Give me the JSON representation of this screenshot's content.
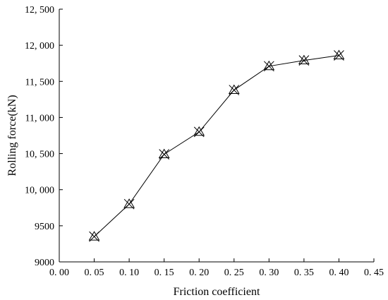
{
  "chart_data": {
    "type": "line",
    "title": "",
    "xlabel": "Friction coefficient",
    "ylabel": "Rolling force(kN)",
    "xlim": [
      0.0,
      0.45
    ],
    "ylim": [
      9000,
      12500
    ],
    "x_ticks": [
      0.0,
      0.05,
      0.1,
      0.15,
      0.2,
      0.25,
      0.3,
      0.35,
      0.4,
      0.45
    ],
    "x_tick_labels": [
      "0. 00",
      "0. 05",
      "0. 10",
      "0. 15",
      "0. 20",
      "0. 25",
      "0. 30",
      "0. 35",
      "0. 40",
      "0. 45"
    ],
    "y_ticks": [
      9000,
      9500,
      10000,
      10500,
      11000,
      11500,
      12000,
      12500
    ],
    "y_tick_labels": [
      "9000",
      "9500",
      "10, 000",
      "10, 500",
      "11, 000",
      "11, 500",
      "12, 000",
      "12, 500"
    ],
    "grid": false,
    "series": [
      {
        "marker": "triangle-x",
        "color": "#000000",
        "x": [
          0.05,
          0.1,
          0.15,
          0.2,
          0.25,
          0.3,
          0.35,
          0.4
        ],
        "y": [
          9350,
          9800,
          10490,
          10800,
          11380,
          11710,
          11790,
          11860
        ]
      }
    ]
  }
}
